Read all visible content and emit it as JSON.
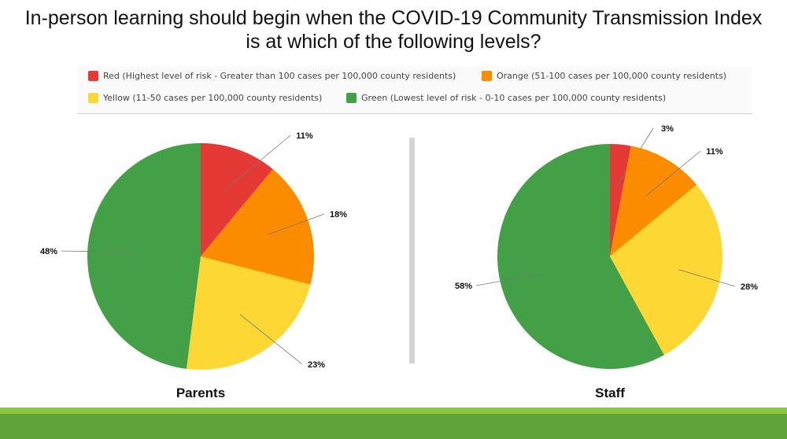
{
  "title_lines": [
    "In-person learning should begin when the COVID-19 Community Transmission Index",
    "is at which of the following levels?"
  ],
  "legend": [
    {
      "label": "Red (Highest level of risk - Greater than 100 cases per 100,000 county residents)",
      "color": "#e53935"
    },
    {
      "label": "Orange (51-100 cases per 100,000 county residents)",
      "color": "#fb8c00"
    },
    {
      "label": "Yellow (11-50 cases per 100,000 county residents)",
      "color": "#fdd835"
    },
    {
      "label": "Green (Lowest level of risk - 0-10 cases per 100,000 county residents)",
      "color": "#43a047"
    }
  ],
  "chart_data": [
    {
      "type": "pie",
      "title": "Parents",
      "categories": [
        "Red",
        "Orange",
        "Yellow",
        "Green"
      ],
      "values": [
        11,
        18,
        23,
        48
      ],
      "labels": [
        "11%",
        "18%",
        "23%",
        "48%"
      ],
      "colors": [
        "#e53935",
        "#fb8c00",
        "#fdd835",
        "#43a047"
      ]
    },
    {
      "type": "pie",
      "title": "Staff",
      "categories": [
        "Red",
        "Orange",
        "Yellow",
        "Green"
      ],
      "values": [
        3,
        11,
        28,
        58
      ],
      "labels": [
        "3%",
        "11%",
        "28%",
        "58%"
      ],
      "colors": [
        "#e53935",
        "#fb8c00",
        "#fdd835",
        "#43a047"
      ]
    }
  ]
}
